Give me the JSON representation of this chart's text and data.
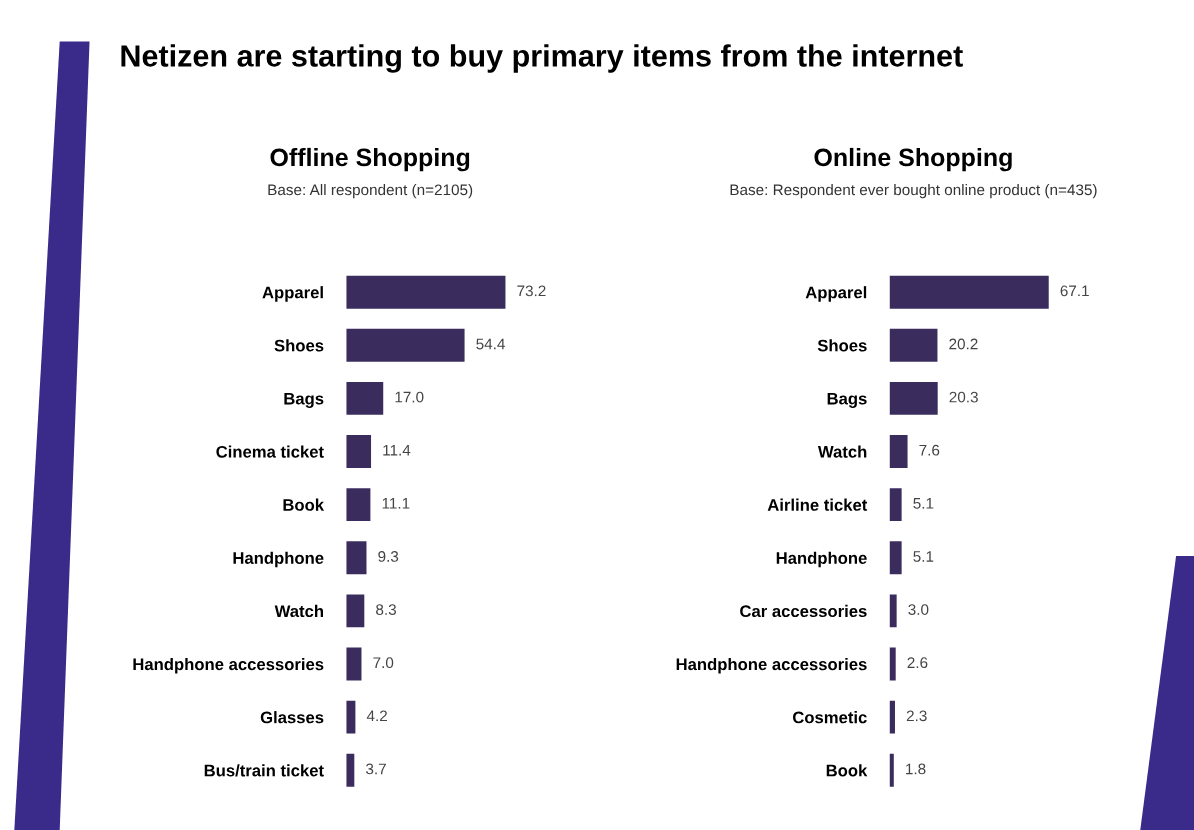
{
  "chart_data": [
    {
      "type": "bar",
      "orientation": "horizontal",
      "title": "Offline Shopping",
      "subtitle": "Base: All respondent (n=2105)",
      "annotations": [
        "Netizen are starting to buy primary items from the internet"
      ],
      "categories": [
        "Apparel",
        "Shoes",
        "Bags",
        "Cinema ticket",
        "Book",
        "Handphone",
        "Watch",
        "Handphone accessories",
        "Glasses",
        "Bus/train ticket"
      ],
      "values": [
        73.2,
        54.4,
        17.0,
        11.4,
        11.1,
        9.3,
        8.3,
        7.0,
        4.2,
        3.7
      ],
      "value_labels": [
        "73.2",
        "54.4",
        "17.0",
        "11.4",
        "11.1",
        "9.3",
        "8.3",
        "7.0",
        "4.2",
        "3.7"
      ],
      "color": "#3b2c5e"
    },
    {
      "type": "bar",
      "orientation": "horizontal",
      "title": "Online Shopping",
      "subtitle": "Base: Respondent ever bought online product (n=435)",
      "categories": [
        "Apparel",
        "Shoes",
        "Bags",
        "Watch",
        "Airline ticket",
        "Handphone",
        "Car accessories",
        "Handphone accessories",
        "Cosmetic",
        "Book"
      ],
      "values": [
        67.1,
        20.2,
        20.3,
        7.6,
        5.1,
        5.1,
        3.0,
        2.6,
        2.3,
        1.8
      ],
      "value_labels": [
        "67.1",
        "20.2",
        "20.3",
        "7.6",
        "5.1",
        "5.1",
        "3.0",
        "2.6",
        "2.3",
        "1.8"
      ],
      "color": "#3b2c5e"
    }
  ]
}
